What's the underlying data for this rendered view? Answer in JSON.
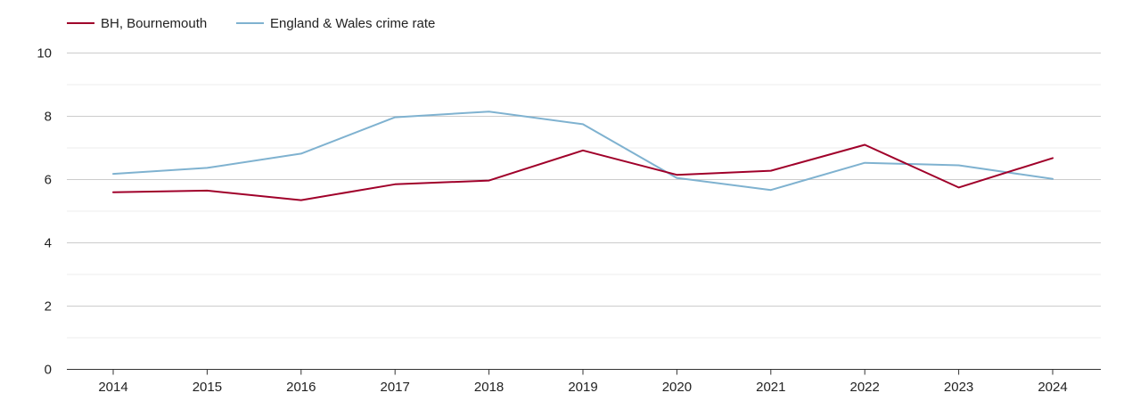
{
  "chart_data": {
    "type": "line",
    "title": "",
    "xlabel": "",
    "ylabel": "",
    "ylim": [
      0,
      10
    ],
    "yticks": [
      0,
      2,
      4,
      6,
      8,
      10
    ],
    "minor_yticks": [
      1,
      3,
      5,
      7,
      9
    ],
    "grid": true,
    "legend_position": "top-left",
    "categories": [
      "2014",
      "2015",
      "2016",
      "2017",
      "2018",
      "2019",
      "2020",
      "2021",
      "2022",
      "2023",
      "2024"
    ],
    "series": [
      {
        "name": "BH, Bournemouth",
        "color": "#a0002a",
        "values": [
          5.6,
          5.65,
          5.35,
          5.85,
          5.97,
          6.92,
          6.15,
          6.28,
          7.1,
          5.75,
          6.68
        ]
      },
      {
        "name": "England & Wales crime rate",
        "color": "#7fb2d0",
        "values": [
          6.18,
          6.37,
          6.82,
          7.97,
          8.15,
          7.75,
          6.05,
          5.67,
          6.53,
          6.45,
          6.02
        ]
      }
    ]
  }
}
